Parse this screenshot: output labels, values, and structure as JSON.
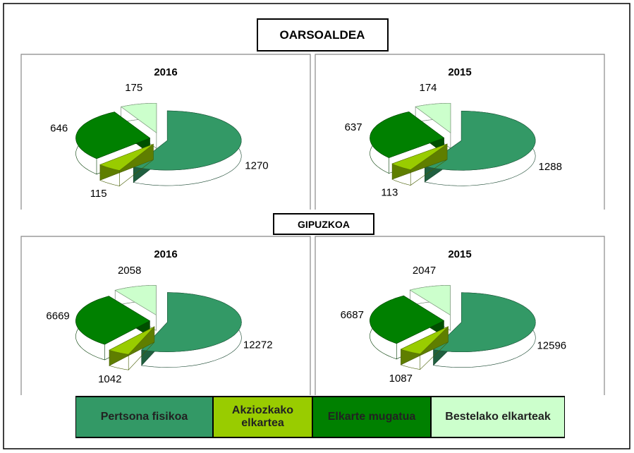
{
  "sections": [
    {
      "title": "OARSOALDEA"
    },
    {
      "title": "GIPUZKOA"
    }
  ],
  "chart_data": [
    {
      "type": "pie",
      "title": "2016",
      "categories": [
        "Pertsona fisikoa",
        "Akziozkako elkartea",
        "Elkarte mugatua",
        "Bestelako elkarteak"
      ],
      "values": [
        1270,
        115,
        646,
        175
      ],
      "colors": [
        "#339966",
        "#99cc00",
        "#008000",
        "#ccffcc"
      ]
    },
    {
      "type": "pie",
      "title": "2015",
      "categories": [
        "Pertsona fisikoa",
        "Akziozkako elkartea",
        "Elkarte mugatua",
        "Bestelako elkarteak"
      ],
      "values": [
        1288,
        113,
        637,
        174
      ],
      "colors": [
        "#339966",
        "#99cc00",
        "#008000",
        "#ccffcc"
      ]
    },
    {
      "type": "pie",
      "title": "2016",
      "categories": [
        "Pertsona fisikoa",
        "Akziozkako elkartea",
        "Elkarte mugatua",
        "Bestelako elkarteak"
      ],
      "values": [
        12272,
        1042,
        6669,
        2058
      ],
      "colors": [
        "#339966",
        "#99cc00",
        "#008000",
        "#ccffcc"
      ]
    },
    {
      "type": "pie",
      "title": "2015",
      "categories": [
        "Pertsona fisikoa",
        "Akziozkako elkartea",
        "Elkarte mugatua",
        "Bestelako elkarteak"
      ],
      "values": [
        12596,
        1087,
        6687,
        2047
      ],
      "colors": [
        "#339966",
        "#99cc00",
        "#008000",
        "#ccffcc"
      ]
    }
  ]
}
